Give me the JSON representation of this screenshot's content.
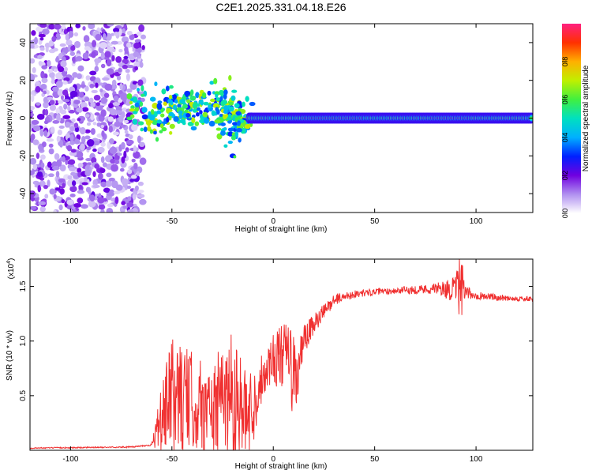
{
  "title": "C2E1.2025.331.04.18.E26",
  "chart_data": [
    {
      "type": "heatmap",
      "xlabel": "Height of straight line (km)",
      "ylabel": "Frequency (Hz)",
      "xlim": [
        -120,
        128
      ],
      "ylim": [
        -50,
        50
      ],
      "xticks": [
        -100,
        -50,
        0,
        50,
        100
      ],
      "yticks": [
        -40,
        -20,
        0,
        20,
        40
      ],
      "colorbar": {
        "label": "Normalized spectral amplitude",
        "range": [
          0,
          1
        ],
        "ticks": [
          "0.0",
          "0.2",
          "0.4",
          "0.6",
          "0.8"
        ],
        "tick_values": [
          0.0,
          0.2,
          0.4,
          0.6,
          0.8
        ],
        "colors": [
          "#ffffff",
          "#b090f0",
          "#7000e0",
          "#0020ff",
          "#00b0ff",
          "#00e0c0",
          "#40f040",
          "#c0f000",
          "#ffb000",
          "#ff3000",
          "#ff2080"
        ]
      },
      "features": {
        "noise_region_km": [
          -120,
          -68
        ],
        "ridge_km": [
          -12,
          128
        ],
        "ridge_freq_hz": 0,
        "isolated_blob": {
          "x": -20,
          "y": -20
        }
      }
    },
    {
      "type": "line",
      "xlabel": "Height of straight line (km)",
      "ylabel": "SNR (10 * v/v)",
      "y_multiplier": "(x10",
      "y_multiplier_exp": "4",
      "y_multiplier_close": ")",
      "xlim": [
        -120,
        128
      ],
      "ylim": [
        0,
        1.75
      ],
      "xticks": [
        -100,
        -50,
        0,
        50,
        100
      ],
      "yticks": [
        0.5,
        1.0,
        1.5
      ],
      "ytick_labels": [
        "0.5",
        "1.0",
        "1.5"
      ],
      "color": "#f03030",
      "envelope": {
        "x": [
          -120,
          -70,
          -60,
          -57,
          -50,
          -40,
          -30,
          -22,
          -18,
          -15,
          -10,
          -5,
          0,
          5,
          8,
          10,
          12,
          15,
          20,
          30,
          40,
          50,
          60,
          70,
          80,
          90,
          92,
          95,
          100,
          110,
          120,
          128
        ],
        "y": [
          0.02,
          0.03,
          0.05,
          0.2,
          0.5,
          0.45,
          0.35,
          0.55,
          0.45,
          0.3,
          0.4,
          0.7,
          0.85,
          0.85,
          0.9,
          0.6,
          0.7,
          1.0,
          1.15,
          1.38,
          1.43,
          1.45,
          1.46,
          1.47,
          1.48,
          1.47,
          1.5,
          1.44,
          1.42,
          1.4,
          1.39,
          1.38
        ],
        "amp": [
          0.005,
          0.006,
          0.01,
          0.2,
          0.55,
          0.45,
          0.42,
          0.6,
          0.7,
          0.45,
          0.35,
          0.2,
          0.25,
          0.3,
          0.35,
          0.45,
          0.3,
          0.15,
          0.1,
          0.05,
          0.035,
          0.03,
          0.03,
          0.04,
          0.05,
          0.12,
          0.35,
          0.06,
          0.04,
          0.03,
          0.025,
          0.025
        ]
      }
    }
  ]
}
